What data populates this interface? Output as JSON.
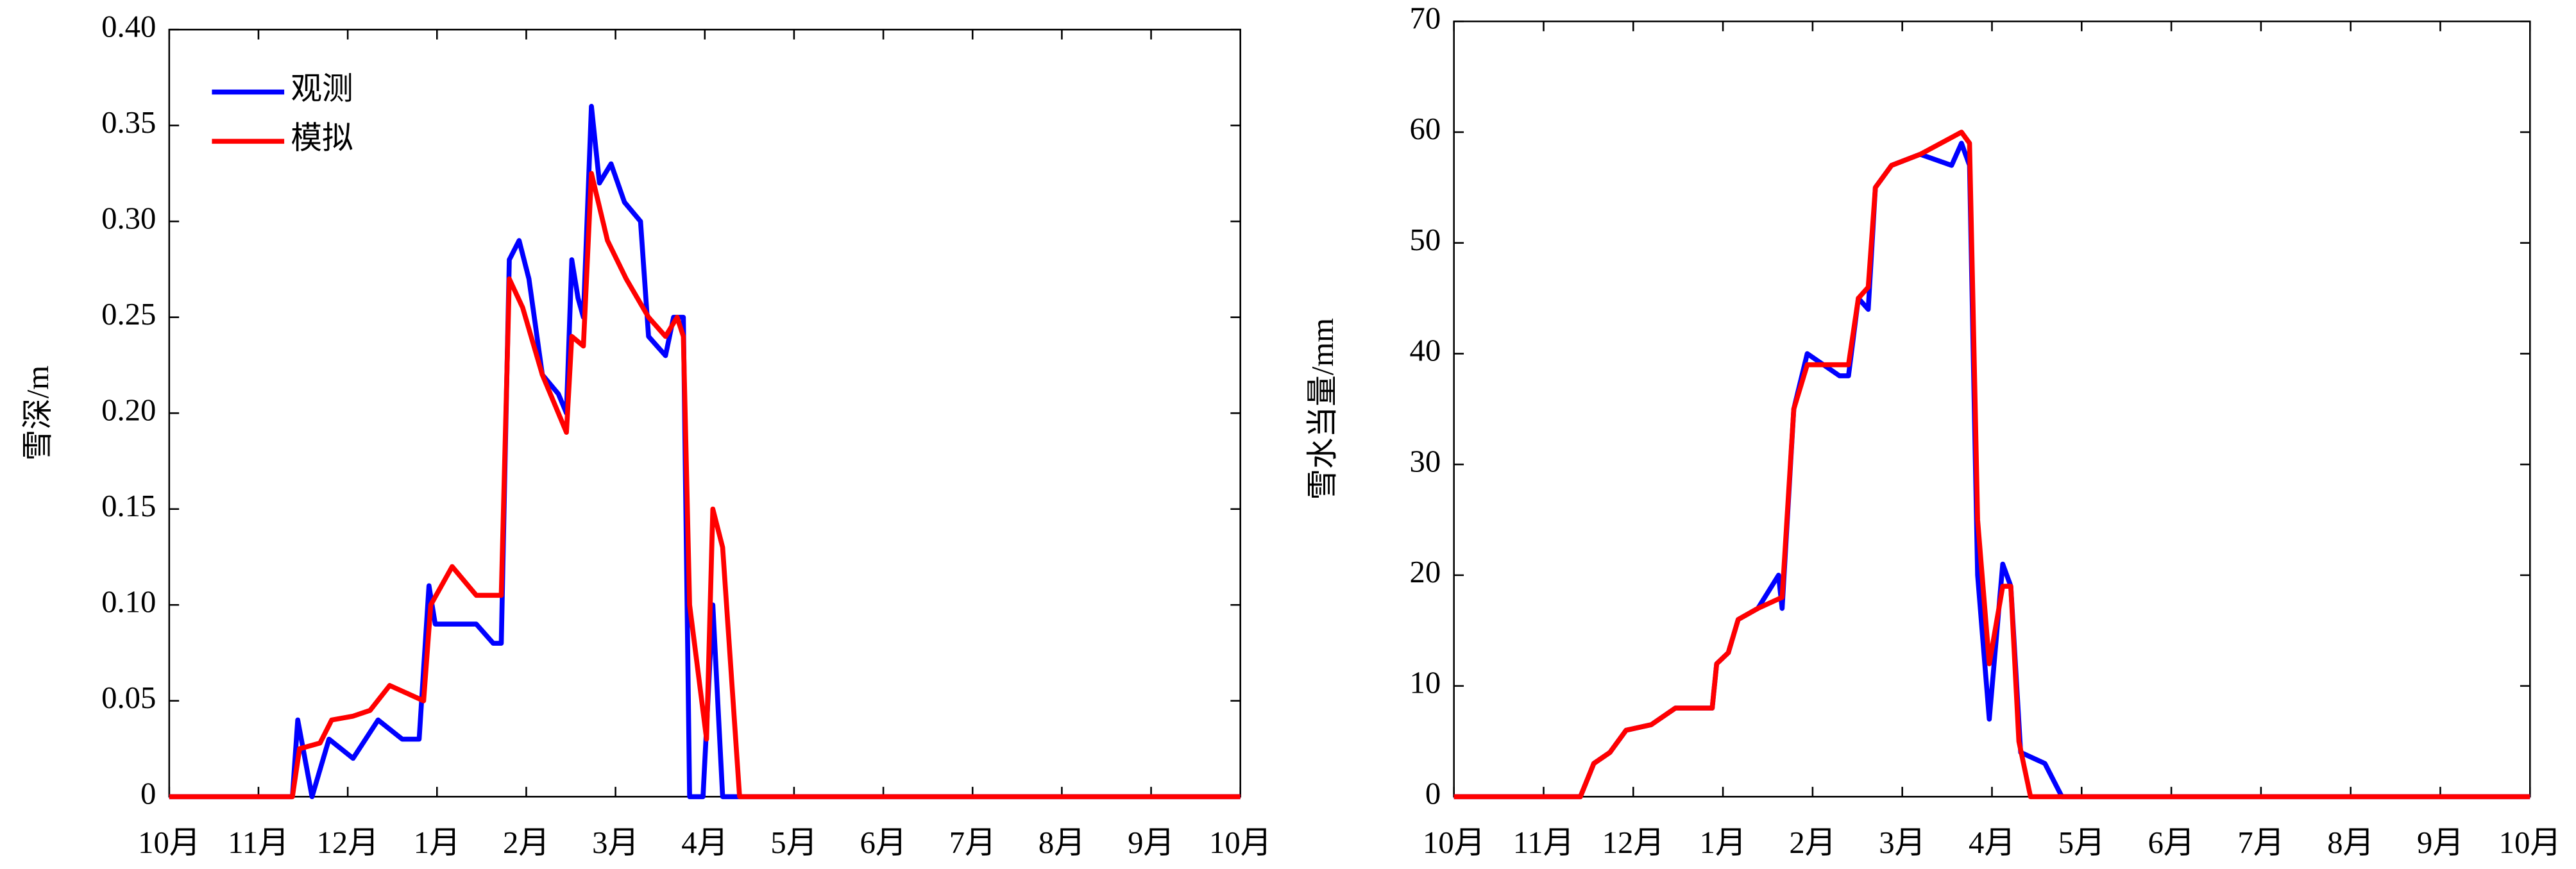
{
  "chart_data": [
    {
      "type": "line",
      "ylabel": "雪深/m",
      "legend": "upper left",
      "xlim": [
        0,
        12
      ],
      "xticks": [
        {
          "value": 0,
          "label": "10月"
        },
        {
          "value": 1,
          "label": "11月"
        },
        {
          "value": 2,
          "label": "12月"
        },
        {
          "value": 3,
          "label": "1月"
        },
        {
          "value": 4,
          "label": "2月"
        },
        {
          "value": 5,
          "label": "3月"
        },
        {
          "value": 6,
          "label": "4月"
        },
        {
          "value": 7,
          "label": "5月"
        },
        {
          "value": 8,
          "label": "6月"
        },
        {
          "value": 9,
          "label": "7月"
        },
        {
          "value": 10,
          "label": "8月"
        },
        {
          "value": 11,
          "label": "9月"
        },
        {
          "value": 12,
          "label": "10月"
        }
      ],
      "ylim": [
        0,
        0.4
      ],
      "yticks": [
        0,
        0.05,
        {
          "value": 0.1,
          "label": "0.10"
        },
        0.15,
        {
          "value": 0.2,
          "label": "0.20"
        },
        0.25,
        {
          "value": 0.3,
          "label": "0.30"
        },
        0.35,
        {
          "value": 0.4,
          "label": "0.40"
        }
      ],
      "series": [
        {
          "name": "观测",
          "color": "#0000ff",
          "x": [
            0,
            1.38,
            1.44,
            1.6,
            1.79,
            2.06,
            2.34,
            2.61,
            2.8,
            2.91,
            2.98,
            3.26,
            3.44,
            3.63,
            3.72,
            3.81,
            3.92,
            4.03,
            4.18,
            4.36,
            4.45,
            4.51,
            4.58,
            4.64,
            4.73,
            4.82,
            4.95,
            5.1,
            5.28,
            5.37,
            5.56,
            5.65,
            5.76,
            5.83,
            5.98,
            6.09,
            6.2,
            12
          ],
          "values": [
            0,
            0,
            0.04,
            0,
            0.03,
            0.02,
            0.04,
            0.03,
            0.03,
            0.11,
            0.09,
            0.09,
            0.09,
            0.08,
            0.08,
            0.28,
            0.29,
            0.27,
            0.22,
            0.21,
            0.2,
            0.28,
            0.26,
            0.25,
            0.36,
            0.32,
            0.33,
            0.31,
            0.3,
            0.24,
            0.23,
            0.25,
            0.25,
            0,
            0,
            0.1,
            0,
            0
          ]
        },
        {
          "name": "模拟",
          "color": "#ff0000",
          "x": [
            0,
            1.38,
            1.46,
            1.69,
            1.82,
            2.06,
            2.25,
            2.47,
            2.85,
            2.93,
            3.17,
            3.44,
            3.72,
            3.81,
            3.96,
            4.18,
            4.36,
            4.45,
            4.51,
            4.64,
            4.73,
            4.91,
            5.12,
            5.37,
            5.56,
            5.69,
            5.76,
            5.83,
            6.02,
            6.09,
            6.2,
            6.39,
            12
          ],
          "values": [
            0,
            0,
            0.025,
            0.028,
            0.04,
            0.042,
            0.045,
            0.058,
            0.05,
            0.1,
            0.12,
            0.105,
            0.105,
            0.27,
            0.255,
            0.22,
            0.2,
            0.19,
            0.24,
            0.235,
            0.325,
            0.29,
            0.27,
            0.25,
            0.24,
            0.25,
            0.24,
            0.1,
            0.03,
            0.15,
            0.13,
            0,
            0
          ]
        }
      ]
    },
    {
      "type": "line",
      "ylabel": "雪水当量/mm",
      "xlim": [
        0,
        12
      ],
      "xticks": [
        {
          "value": 0,
          "label": "10月"
        },
        {
          "value": 1,
          "label": "11月"
        },
        {
          "value": 2,
          "label": "12月"
        },
        {
          "value": 3,
          "label": "1月"
        },
        {
          "value": 4,
          "label": "2月"
        },
        {
          "value": 5,
          "label": "3月"
        },
        {
          "value": 6,
          "label": "4月"
        },
        {
          "value": 7,
          "label": "5月"
        },
        {
          "value": 8,
          "label": "6月"
        },
        {
          "value": 9,
          "label": "7月"
        },
        {
          "value": 10,
          "label": "8月"
        },
        {
          "value": 11,
          "label": "9月"
        },
        {
          "value": 12,
          "label": "10月"
        }
      ],
      "ylim": [
        0,
        70
      ],
      "yticks": [
        0,
        10,
        20,
        30,
        40,
        50,
        60,
        70
      ],
      "series": [
        {
          "color": "#0000ff",
          "x": [
            0,
            1.41,
            1.56,
            1.74,
            1.92,
            2.2,
            2.47,
            2.88,
            2.93,
            3.06,
            3.17,
            3.39,
            3.62,
            3.66,
            3.79,
            3.94,
            4.3,
            4.4,
            4.51,
            4.62,
            4.7,
            4.88,
            5.2,
            5.55,
            5.66,
            5.75,
            5.84,
            5.97,
            6.12,
            6.21,
            6.32,
            6.59,
            6.78,
            12
          ],
          "values": [
            0,
            0,
            3,
            4,
            6,
            6.5,
            8,
            8,
            12,
            13,
            16,
            17,
            20,
            17,
            35,
            40,
            38,
            38,
            45,
            44,
            55,
            57,
            58,
            57,
            59,
            57,
            20,
            7,
            21,
            19,
            4,
            3,
            0,
            0
          ]
        },
        {
          "color": "#ff0000",
          "x": [
            0,
            1.41,
            1.56,
            1.74,
            1.92,
            2.2,
            2.47,
            2.88,
            2.93,
            3.06,
            3.17,
            3.39,
            3.66,
            3.79,
            3.94,
            4.4,
            4.51,
            4.62,
            4.7,
            4.88,
            5.2,
            5.66,
            5.75,
            5.84,
            5.97,
            6.12,
            6.21,
            6.3,
            6.43,
            12
          ],
          "values": [
            0,
            0,
            3,
            4,
            6,
            6.5,
            8,
            8,
            12,
            13,
            16,
            17,
            18,
            35,
            39,
            39,
            45,
            46,
            55,
            57,
            58,
            60,
            59,
            25,
            12,
            19,
            19,
            5,
            0,
            0
          ]
        }
      ]
    }
  ]
}
